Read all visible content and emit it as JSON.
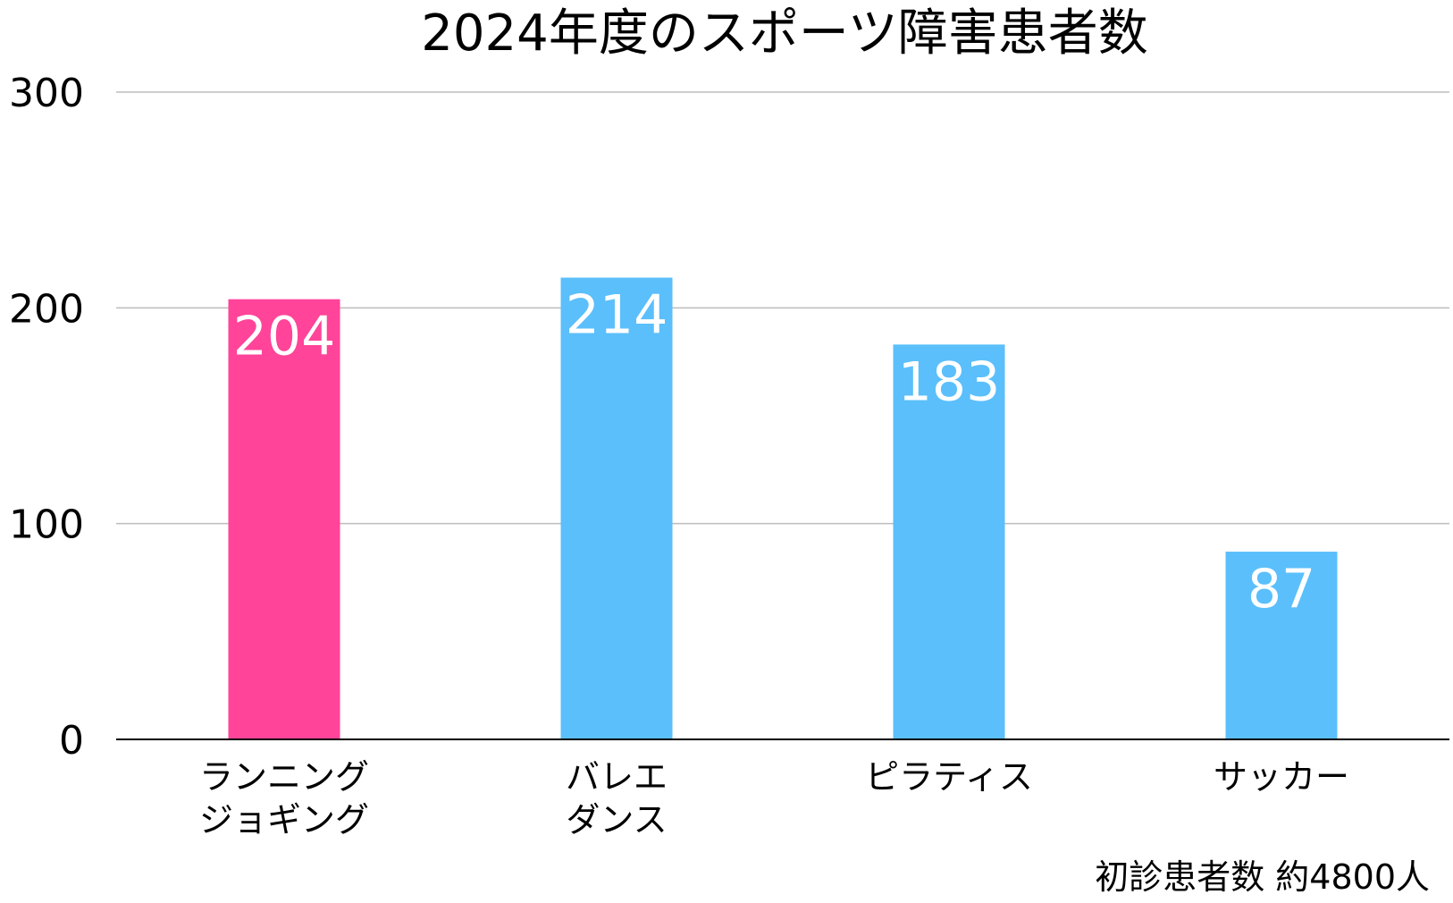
{
  "chart_data": {
    "type": "bar",
    "title": "2024年度のスポーツ障害患者数",
    "categories": [
      [
        "ランニング",
        "ジョギング"
      ],
      [
        "バレエ",
        "ダンス"
      ],
      [
        "ピラティス"
      ],
      [
        "サッカー"
      ]
    ],
    "values": [
      204,
      214,
      183,
      87
    ],
    "bar_colors": [
      "#ff4499",
      "#5bbffb",
      "#5bbffb",
      "#5bbffb"
    ],
    "data_labels": [
      "204",
      "214",
      "183",
      "87"
    ],
    "ylim": [
      0,
      300
    ],
    "yticks": [
      0,
      100,
      200,
      300
    ],
    "grid": true,
    "note": "初診患者数 約4800人"
  }
}
